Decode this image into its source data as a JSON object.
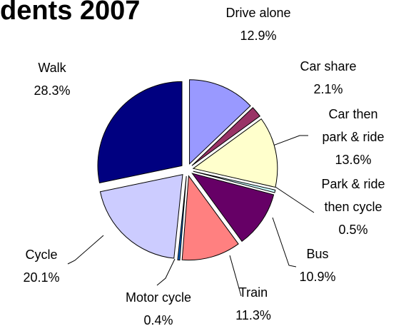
{
  "chart_data": {
    "type": "pie",
    "title": "dents 2007",
    "categories": [
      "Drive alone",
      "Car share",
      "Car then park & ride",
      "Park & ride then cycle",
      "Bus",
      "Train",
      "Motor cycle",
      "Cycle",
      "Walk"
    ],
    "values": [
      12.9,
      2.1,
      13.6,
      0.5,
      10.9,
      11.3,
      0.4,
      20.1,
      28.3
    ],
    "value_labels": [
      "12.9%",
      "2.1%",
      "13.6%",
      "0.5%",
      "10.9%",
      "11.3%",
      "0.4%",
      "20.1%",
      "28.3%"
    ],
    "colors": [
      "#9999ff",
      "#993366",
      "#ffffcc",
      "#ccffff",
      "#660066",
      "#ff8080",
      "#0066cc",
      "#ccccff",
      "#000080"
    ]
  }
}
